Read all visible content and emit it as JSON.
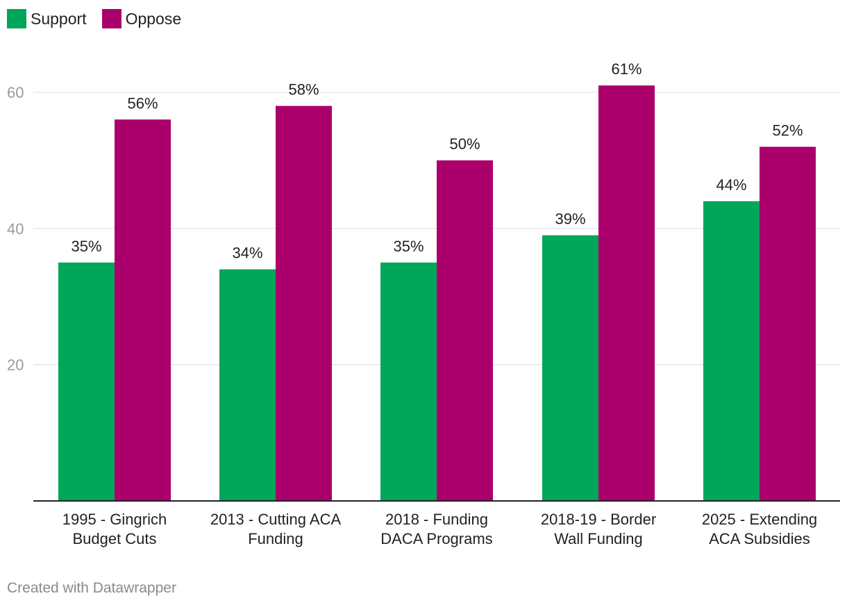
{
  "legend": {
    "support_label": "Support",
    "oppose_label": "Oppose"
  },
  "colors": {
    "support": "#00a65a",
    "oppose": "#ab006b",
    "grid": "#dcdcdc",
    "axis": "#222222",
    "tick_text": "#9a9a9a",
    "label_text": "#222222"
  },
  "chart_data": {
    "type": "bar",
    "title": "",
    "xlabel": "",
    "ylabel": "",
    "ylim": [
      0,
      60
    ],
    "yticks": [
      20,
      40,
      60
    ],
    "grid": true,
    "legend_position": "top-left",
    "categories": [
      [
        "1995 - Gingrich",
        "Budget Cuts"
      ],
      [
        "2013 - Cutting ACA",
        "Funding"
      ],
      [
        "2018 - Funding",
        "DACA Programs"
      ],
      [
        "2018-19 - Border",
        "Wall Funding"
      ],
      [
        "2025 - Extending",
        "ACA Subsidies"
      ]
    ],
    "series": [
      {
        "name": "Support",
        "values": [
          35,
          34,
          35,
          39,
          44
        ],
        "labels": [
          "35%",
          "34%",
          "35%",
          "39%",
          "44%"
        ]
      },
      {
        "name": "Oppose",
        "values": [
          56,
          58,
          50,
          61,
          52
        ],
        "labels": [
          "56%",
          "58%",
          "50%",
          "61%",
          "52%"
        ]
      }
    ]
  },
  "footer": {
    "credit": "Created with Datawrapper"
  }
}
